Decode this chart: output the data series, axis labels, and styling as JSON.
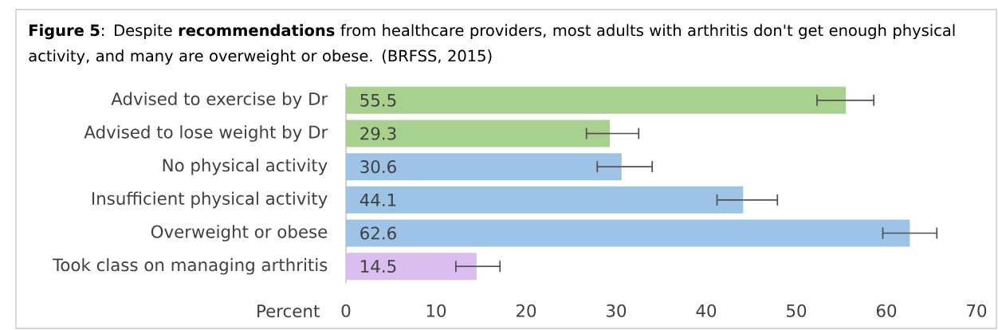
{
  "chart_data": {
    "type": "bar",
    "orientation": "horizontal",
    "title": "**Figure 5**: Despite **recommendations** from healthcare providers, most adults with arthritis don't get enough physical activity, and many are overweight or obese. (BRFSS, 2015)",
    "xlabel": "Percent",
    "categories": [
      "Advised to exercise by Dr",
      "Advised to lose weight by Dr",
      "No physical activity",
      "Insufficient physical activity",
      "Overweight or obese",
      "Took class on managing arthritis"
    ],
    "values": [
      55.5,
      29.3,
      30.6,
      44.1,
      62.6,
      14.5
    ],
    "colors": [
      "#a9d18e",
      "#a9d18e",
      "#9dc3e6",
      "#9dc3e6",
      "#9dc3e6",
      "#dbbdf0"
    ],
    "errors": [
      [
        52.3,
        58.6
      ],
      [
        26.7,
        32.5
      ],
      [
        27.9,
        34.0
      ],
      [
        41.2,
        47.9
      ],
      [
        59.6,
        65.6
      ],
      [
        12.2,
        17.1
      ]
    ],
    "xlim": [
      0,
      70
    ],
    "xticks": [
      0,
      10,
      20,
      30,
      40,
      50,
      60,
      70
    ],
    "data_labels": true,
    "grid": false
  }
}
